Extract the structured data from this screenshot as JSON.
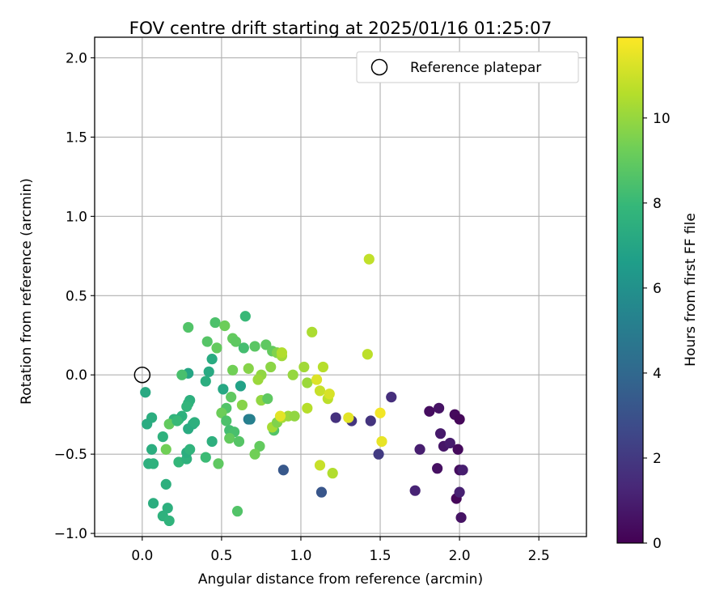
{
  "chart_data": {
    "type": "scatter",
    "title": "FOV centre drift starting at 2025/01/16 01:25:07",
    "xlabel": "Angular distance from reference (arcmin)",
    "ylabel": "Rotation from reference (arcmin)",
    "xlim": [
      -0.3,
      2.8
    ],
    "ylim": [
      -1.02,
      2.13
    ],
    "x_ticks": [
      0.0,
      0.5,
      1.0,
      1.5,
      2.0,
      2.5
    ],
    "x_tick_labels": [
      "0.0",
      "0.5",
      "1.0",
      "1.5",
      "2.0",
      "2.5"
    ],
    "y_ticks": [
      -1.0,
      -0.5,
      0.0,
      0.5,
      1.0,
      1.5,
      2.0
    ],
    "y_tick_labels": [
      "−1.0",
      "−0.5",
      "0.0",
      "0.5",
      "1.0",
      "1.5",
      "2.0"
    ],
    "grid": true,
    "legend": {
      "placement": "upper right",
      "entries": [
        "Reference platepar"
      ]
    },
    "reference_point": {
      "name": "Reference platepar",
      "x": 0.0,
      "y": 0.0
    },
    "colorbar": {
      "label": "Hours from first FF file",
      "colormap": "viridis",
      "range": [
        0,
        11.9
      ],
      "ticks": [
        0,
        2,
        4,
        6,
        8,
        10
      ],
      "tick_labels": [
        "0",
        "2",
        "4",
        "6",
        "8",
        "10"
      ]
    },
    "series": [
      {
        "values": [
          {
            "x": 1.81,
            "y": -0.23,
            "c": 0.4
          },
          {
            "x": 1.87,
            "y": -0.21,
            "c": 0.6
          },
          {
            "x": 1.97,
            "y": -0.25,
            "c": 0.3
          },
          {
            "x": 2.0,
            "y": -0.28,
            "c": 0.2
          },
          {
            "x": 1.88,
            "y": -0.37,
            "c": 0.8
          },
          {
            "x": 1.9,
            "y": -0.45,
            "c": 0.7
          },
          {
            "x": 1.94,
            "y": -0.43,
            "c": 0.9
          },
          {
            "x": 1.99,
            "y": -0.47,
            "c": 0.3
          },
          {
            "x": 1.86,
            "y": -0.59,
            "c": 0.5
          },
          {
            "x": 2.0,
            "y": -0.6,
            "c": 0.4
          },
          {
            "x": 2.02,
            "y": -0.6,
            "c": 1.0
          },
          {
            "x": 1.98,
            "y": -0.78,
            "c": 0.2
          },
          {
            "x": 2.0,
            "y": -0.74,
            "c": 1.1
          },
          {
            "x": 2.01,
            "y": -0.9,
            "c": 0.6
          },
          {
            "x": 1.72,
            "y": -0.73,
            "c": 1.2
          },
          {
            "x": 1.75,
            "y": -0.47,
            "c": 1.0
          },
          {
            "x": 1.57,
            "y": -0.14,
            "c": 1.6
          },
          {
            "x": 1.49,
            "y": -0.5,
            "c": 2.1
          },
          {
            "x": 1.44,
            "y": -0.29,
            "c": 1.8
          },
          {
            "x": 1.22,
            "y": -0.27,
            "c": 1.7
          },
          {
            "x": 1.32,
            "y": -0.29,
            "c": 1.9
          },
          {
            "x": 1.13,
            "y": -0.74,
            "c": 3.2
          },
          {
            "x": 0.89,
            "y": -0.6,
            "c": 3.3
          },
          {
            "x": 0.67,
            "y": -0.28,
            "c": 5.0
          },
          {
            "x": 0.68,
            "y": -0.28,
            "c": 5.2
          },
          {
            "x": 0.62,
            "y": -0.07,
            "c": 6.8
          },
          {
            "x": 0.51,
            "y": -0.09,
            "c": 7.1
          },
          {
            "x": 0.29,
            "y": 0.01,
            "c": 7.0
          },
          {
            "x": 0.42,
            "y": 0.02,
            "c": 7.2
          },
          {
            "x": 0.44,
            "y": 0.1,
            "c": 7.3
          },
          {
            "x": 0.4,
            "y": -0.04,
            "c": 7.4
          },
          {
            "x": 0.3,
            "y": -0.16,
            "c": 7.5
          },
          {
            "x": 0.29,
            "y": -0.18,
            "c": 7.6
          },
          {
            "x": 0.28,
            "y": -0.2,
            "c": 7.8
          },
          {
            "x": 0.32,
            "y": -0.31,
            "c": 7.4
          },
          {
            "x": 0.29,
            "y": -0.34,
            "c": 7.3
          },
          {
            "x": 0.25,
            "y": -0.26,
            "c": 7.6
          },
          {
            "x": 0.23,
            "y": -0.28,
            "c": 7.5
          },
          {
            "x": 0.2,
            "y": -0.28,
            "c": 7.7
          },
          {
            "x": 0.13,
            "y": -0.39,
            "c": 7.6
          },
          {
            "x": 0.06,
            "y": -0.27,
            "c": 7.4
          },
          {
            "x": 0.03,
            "y": -0.31,
            "c": 7.3
          },
          {
            "x": 0.02,
            "y": -0.11,
            "c": 7.2
          },
          {
            "x": 0.06,
            "y": -0.47,
            "c": 7.4
          },
          {
            "x": 0.04,
            "y": -0.56,
            "c": 7.5
          },
          {
            "x": 0.07,
            "y": -0.56,
            "c": 7.6
          },
          {
            "x": 0.07,
            "y": -0.81,
            "c": 7.4
          },
          {
            "x": 0.13,
            "y": -0.89,
            "c": 7.6
          },
          {
            "x": 0.16,
            "y": -0.84,
            "c": 7.5
          },
          {
            "x": 0.17,
            "y": -0.92,
            "c": 7.7
          },
          {
            "x": 0.15,
            "y": -0.69,
            "c": 7.5
          },
          {
            "x": 0.23,
            "y": -0.55,
            "c": 7.9
          },
          {
            "x": 0.28,
            "y": -0.53,
            "c": 7.6
          },
          {
            "x": 0.28,
            "y": -0.49,
            "c": 7.4
          },
          {
            "x": 0.3,
            "y": -0.47,
            "c": 7.7
          },
          {
            "x": 0.44,
            "y": -0.42,
            "c": 7.5
          },
          {
            "x": 0.4,
            "y": -0.52,
            "c": 8.1
          },
          {
            "x": 0.48,
            "y": -0.56,
            "c": 8.9
          },
          {
            "x": 0.25,
            "y": 0.0,
            "c": 8.4
          },
          {
            "x": 0.29,
            "y": 0.3,
            "c": 8.6
          },
          {
            "x": 0.41,
            "y": 0.21,
            "c": 8.7
          },
          {
            "x": 0.46,
            "y": 0.33,
            "c": 8.5
          },
          {
            "x": 0.47,
            "y": 0.17,
            "c": 9.0
          },
          {
            "x": 0.52,
            "y": 0.31,
            "c": 9.2
          },
          {
            "x": 0.57,
            "y": 0.23,
            "c": 9.0
          },
          {
            "x": 0.59,
            "y": 0.21,
            "c": 8.9
          },
          {
            "x": 0.64,
            "y": 0.17,
            "c": 8.3
          },
          {
            "x": 0.65,
            "y": 0.37,
            "c": 8.0
          },
          {
            "x": 0.71,
            "y": 0.18,
            "c": 8.8
          },
          {
            "x": 0.78,
            "y": 0.19,
            "c": 8.9
          },
          {
            "x": 0.82,
            "y": 0.15,
            "c": 9.0
          },
          {
            "x": 0.85,
            "y": 0.14,
            "c": 9.6
          },
          {
            "x": 0.88,
            "y": 0.12,
            "c": 10.2
          },
          {
            "x": 0.88,
            "y": 0.14,
            "c": 10.5
          },
          {
            "x": 0.81,
            "y": 0.05,
            "c": 9.8
          },
          {
            "x": 0.75,
            "y": 0.0,
            "c": 9.9
          },
          {
            "x": 0.73,
            "y": -0.03,
            "c": 10.1
          },
          {
            "x": 0.67,
            "y": 0.04,
            "c": 9.7
          },
          {
            "x": 0.57,
            "y": 0.03,
            "c": 9.3
          },
          {
            "x": 0.56,
            "y": -0.14,
            "c": 8.9
          },
          {
            "x": 0.53,
            "y": -0.21,
            "c": 8.6
          },
          {
            "x": 0.5,
            "y": -0.24,
            "c": 9.2
          },
          {
            "x": 0.53,
            "y": -0.29,
            "c": 8.5
          },
          {
            "x": 0.55,
            "y": -0.35,
            "c": 8.3
          },
          {
            "x": 0.58,
            "y": -0.36,
            "c": 8.4
          },
          {
            "x": 0.55,
            "y": -0.4,
            "c": 9.0
          },
          {
            "x": 0.61,
            "y": -0.42,
            "c": 8.7
          },
          {
            "x": 0.63,
            "y": -0.19,
            "c": 9.7
          },
          {
            "x": 0.75,
            "y": -0.16,
            "c": 9.9
          },
          {
            "x": 0.79,
            "y": -0.15,
            "c": 8.9
          },
          {
            "x": 0.74,
            "y": -0.45,
            "c": 9.0
          },
          {
            "x": 0.71,
            "y": -0.5,
            "c": 9.3
          },
          {
            "x": 0.83,
            "y": -0.35,
            "c": 8.6
          },
          {
            "x": 0.82,
            "y": -0.33,
            "c": 10.3
          },
          {
            "x": 0.85,
            "y": -0.3,
            "c": 9.6
          },
          {
            "x": 0.88,
            "y": -0.27,
            "c": 10.3
          },
          {
            "x": 0.92,
            "y": -0.26,
            "c": 10.1
          },
          {
            "x": 0.96,
            "y": -0.26,
            "c": 9.9
          },
          {
            "x": 0.87,
            "y": -0.26,
            "c": 11.4
          },
          {
            "x": 0.95,
            "y": 0.0,
            "c": 10.0
          },
          {
            "x": 1.02,
            "y": 0.05,
            "c": 10.2
          },
          {
            "x": 1.04,
            "y": -0.05,
            "c": 10.1
          },
          {
            "x": 1.07,
            "y": 0.27,
            "c": 10.4
          },
          {
            "x": 1.04,
            "y": -0.21,
            "c": 10.6
          },
          {
            "x": 1.1,
            "y": -0.03,
            "c": 11.3
          },
          {
            "x": 1.12,
            "y": -0.1,
            "c": 10.9
          },
          {
            "x": 1.14,
            "y": 0.05,
            "c": 10.6
          },
          {
            "x": 1.17,
            "y": -0.15,
            "c": 10.7
          },
          {
            "x": 1.18,
            "y": -0.12,
            "c": 11.2
          },
          {
            "x": 1.12,
            "y": -0.57,
            "c": 10.9
          },
          {
            "x": 1.2,
            "y": -0.62,
            "c": 10.5
          },
          {
            "x": 1.3,
            "y": -0.27,
            "c": 11.4
          },
          {
            "x": 1.43,
            "y": 0.73,
            "c": 10.8
          },
          {
            "x": 1.42,
            "y": 0.13,
            "c": 10.7
          },
          {
            "x": 1.5,
            "y": -0.24,
            "c": 11.7
          },
          {
            "x": 1.51,
            "y": -0.42,
            "c": 11.5
          },
          {
            "x": 0.6,
            "y": -0.86,
            "c": 8.6
          },
          {
            "x": 0.17,
            "y": -0.31,
            "c": 9.0
          },
          {
            "x": 0.15,
            "y": -0.47,
            "c": 9.3
          },
          {
            "x": 0.22,
            "y": -0.29,
            "c": 8.0
          },
          {
            "x": 0.33,
            "y": -0.3,
            "c": 7.5
          }
        ]
      }
    ]
  }
}
